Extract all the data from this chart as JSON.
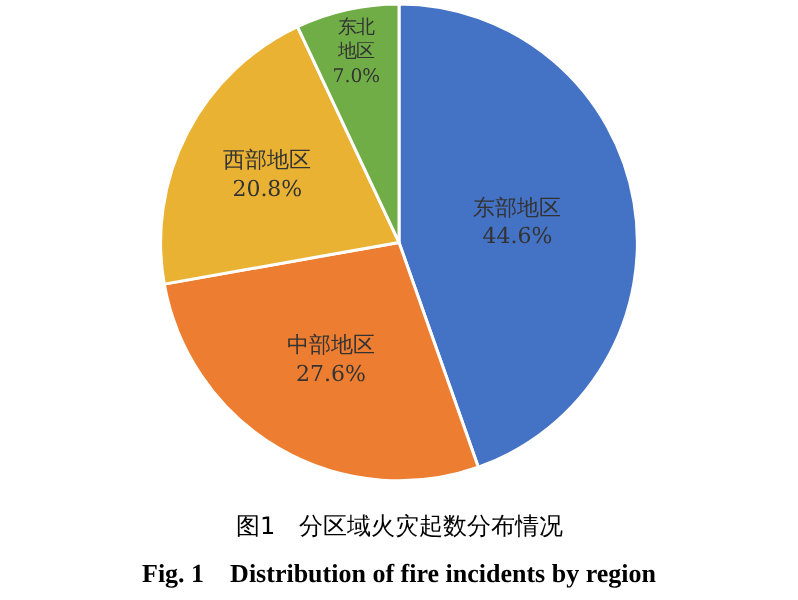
{
  "chart_data": {
    "type": "pie",
    "title": "图1　分区域火灾起数分布情况",
    "subtitle": "Fig. 1　Distribution of fire incidents by region",
    "categories": [
      "东部地区",
      "中部地区",
      "西部地区",
      "东北地区"
    ],
    "values": [
      44.6,
      27.6,
      20.8,
      7.0
    ],
    "value_labels": [
      "44.6%",
      "27.6%",
      "20.8%",
      "7.0%"
    ],
    "colors": [
      "#4472c4",
      "#ed7d31",
      "#e9b233",
      "#70ad47"
    ],
    "legend": false
  }
}
